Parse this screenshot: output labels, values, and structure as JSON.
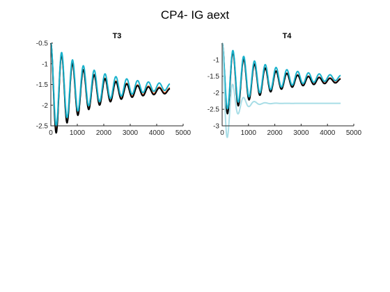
{
  "figure": {
    "title": "CP4- IG aext"
  },
  "chart_data": [
    {
      "type": "line",
      "title": "T3",
      "xlabel": "",
      "ylabel": "",
      "xlim": [
        0,
        5000
      ],
      "ylim": [
        -2.5,
        -0.5
      ],
      "xticks": [
        "0",
        "1000",
        "2000",
        "3000",
        "4000",
        "5000"
      ],
      "yticks": [
        "-0.5",
        "-1",
        "-1.5",
        "-2",
        "-2.5"
      ],
      "grid": false,
      "series": [
        {
          "color": "#d95319",
          "y0": -0.5,
          "amp": -1.85,
          "final": -1.64,
          "period": 410,
          "decay": 1500,
          "xend": 4500
        },
        {
          "color": "#000000",
          "y0": -0.5,
          "amp": -1.85,
          "final": -1.66,
          "period": 410,
          "decay": 1500,
          "xend": 4500
        },
        {
          "color": "#1ab2cc",
          "y0": -0.5,
          "amp": -1.75,
          "final": -1.56,
          "period": 410,
          "decay": 1700,
          "xend": 4500
        }
      ]
    },
    {
      "type": "line",
      "title": "T4",
      "xlabel": "",
      "ylabel": "",
      "xlim": [
        0,
        5000
      ],
      "ylim": [
        -3,
        -0.5
      ],
      "xticks": [
        "0",
        "1000",
        "2000",
        "3000",
        "4000",
        "5000"
      ],
      "yticks": [
        "-1",
        "-1.5",
        "-2",
        "-2.5",
        "-3"
      ],
      "grid": false,
      "series": [
        {
          "color": "#e07060",
          "y0": -0.5,
          "amp": -1.85,
          "final": -1.62,
          "period": 410,
          "decay": 1500,
          "xend": 4500
        },
        {
          "color": "#000000",
          "y0": -0.5,
          "amp": -1.85,
          "final": -1.64,
          "period": 410,
          "decay": 1500,
          "xend": 4500
        },
        {
          "color": "#1ab2cc",
          "y0": -0.5,
          "amp": -1.75,
          "final": -1.55,
          "period": 410,
          "decay": 1700,
          "xend": 4500
        },
        {
          "color": "#a8dde6",
          "y0": -0.5,
          "amp": -1.5,
          "final": -2.32,
          "period": 410,
          "decay": 350,
          "xend": 4500
        }
      ]
    }
  ]
}
